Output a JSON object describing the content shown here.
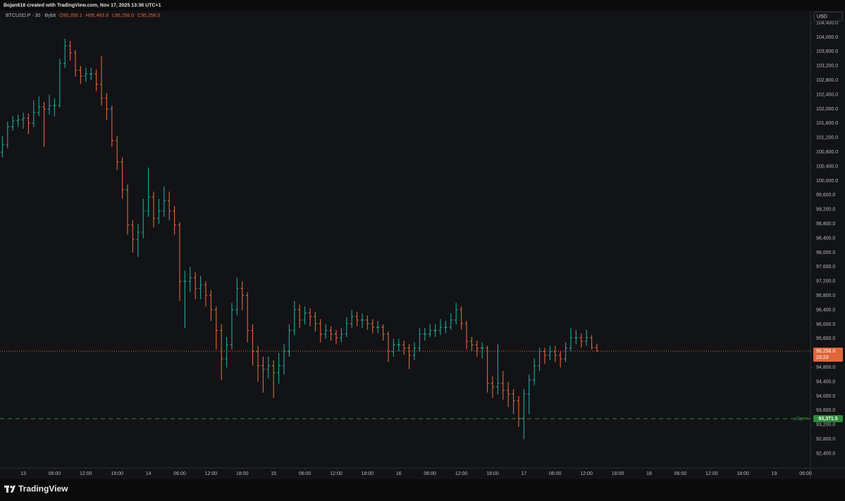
{
  "header": "Bojan618 created with TradingView.com, Nov 17, 2025 13:36 UTC+1",
  "footer": "TradingView",
  "chart_data": {
    "type": "ohlc",
    "symbol": "BTCUSD.P · 30 · Bybit",
    "currency": "USD",
    "legend": [
      {
        "prefix": "O",
        "label": "95,356.1"
      },
      {
        "prefix": "H",
        "label": "95,463.8"
      },
      {
        "prefix": "L",
        "label": "95,256.0"
      },
      {
        "prefix": "C",
        "label": "95,256.0"
      }
    ],
    "up_color": "#26a69a",
    "down_color": "#e0663c",
    "x": [
      -4,
      -3,
      -2,
      -1,
      0,
      1,
      2,
      3,
      4,
      5,
      6,
      7,
      8,
      9,
      10,
      11,
      12,
      13,
      14,
      15,
      16,
      17,
      18,
      19,
      20,
      21,
      22,
      23,
      24,
      25,
      26,
      27,
      28,
      29,
      30,
      31,
      32,
      33,
      34,
      35,
      36,
      37,
      38,
      39,
      40,
      41,
      42,
      43,
      44,
      45,
      46,
      47,
      48,
      49,
      50,
      51,
      52,
      53,
      54,
      55,
      56,
      57,
      58,
      59,
      60,
      61,
      62,
      63,
      64,
      65,
      66,
      67,
      68,
      69,
      70,
      71,
      72,
      73,
      74,
      75,
      76,
      77,
      78,
      79,
      80,
      81,
      82,
      83,
      84,
      85,
      86,
      87,
      88,
      89,
      90,
      91,
      92,
      93,
      94,
      95,
      96,
      97,
      98,
      99,
      100,
      101,
      102,
      103,
      104,
      105,
      106,
      107,
      108,
      109,
      110
    ],
    "open": [
      100800,
      101000,
      101510,
      101670,
      101700,
      101750,
      101610,
      101900,
      102060,
      102000,
      102100,
      102100,
      103270,
      103760,
      103570,
      103080,
      102920,
      102980,
      102980,
      102690,
      102300,
      102000,
      101120,
      100530,
      99750,
      98770,
      98370,
      98570,
      99160,
      99550,
      98960,
      99160,
      99450,
      99160,
      98770,
      97200,
      97200,
      97300,
      97000,
      97100,
      96810,
      96410,
      95830,
      95040,
      95430,
      96410,
      97000,
      96810,
      95830,
      95240,
      94850,
      94750,
      94850,
      94650,
      94850,
      95240,
      95830,
      96410,
      96120,
      96320,
      96220,
      96020,
      95730,
      95830,
      95730,
      95630,
      95730,
      96020,
      96220,
      96120,
      96120,
      96020,
      95920,
      95920,
      95730,
      95240,
      95430,
      95430,
      95340,
      95140,
      95340,
      95730,
      95730,
      95830,
      95830,
      95920,
      95920,
      96120,
      96410,
      96020,
      95530,
      95430,
      95340,
      95340,
      94360,
      94260,
      94360,
      94160,
      94060,
      93870,
      93380,
      94060,
      94450,
      94850,
      95240,
      95140,
      95240,
      95140,
      95040,
      95340,
      95630,
      95630,
      95530,
      95630,
      95356.1
    ],
    "high": [
      101250,
      101650,
      101800,
      101850,
      101900,
      101880,
      102250,
      102350,
      102200,
      102400,
      102300,
      103400,
      103960,
      103900,
      103650,
      103200,
      103150,
      103150,
      103100,
      103470,
      102450,
      102100,
      101250,
      100650,
      99900,
      98900,
      98800,
      99500,
      100370,
      99700,
      99500,
      99850,
      99700,
      99300,
      98850,
      97500,
      97600,
      97450,
      97350,
      97200,
      96950,
      96500,
      96000,
      95650,
      96600,
      97300,
      97200,
      96900,
      96000,
      95400,
      95100,
      95100,
      95000,
      95200,
      95450,
      96000,
      96650,
      96550,
      96500,
      96450,
      96350,
      96150,
      96000,
      95950,
      95850,
      95900,
      96200,
      96400,
      96350,
      96300,
      96250,
      96150,
      96100,
      96000,
      95800,
      95600,
      95600,
      95550,
      95450,
      95500,
      95900,
      95900,
      96000,
      96000,
      96150,
      96100,
      96300,
      96600,
      96500,
      96100,
      95650,
      95550,
      95500,
      95400,
      94550,
      95450,
      94700,
      94400,
      94200,
      94000,
      94200,
      94600,
      95050,
      95350,
      95350,
      95400,
      95400,
      95250,
      95500,
      95900,
      95850,
      95750,
      95850,
      95700,
      95463.8
    ],
    "low": [
      100650,
      100900,
      101400,
      101500,
      101450,
      101300,
      101500,
      101800,
      100950,
      101850,
      101800,
      102050,
      103150,
      103350,
      102900,
      102700,
      102750,
      102800,
      102500,
      102100,
      101700,
      100950,
      100300,
      99500,
      98500,
      98000,
      97880,
      98400,
      99000,
      98700,
      98800,
      99000,
      98900,
      98500,
      96650,
      95900,
      96900,
      96700,
      96700,
      96500,
      96100,
      95300,
      94450,
      94800,
      95300,
      96250,
      96400,
      95500,
      94850,
      94400,
      94100,
      94500,
      93950,
      94350,
      94600,
      95100,
      95700,
      95900,
      96000,
      95950,
      95800,
      95500,
      95600,
      95550,
      95450,
      95500,
      95650,
      95900,
      95950,
      95900,
      95850,
      95750,
      95750,
      95550,
      94950,
      95100,
      95250,
      95150,
      94750,
      95000,
      95250,
      95550,
      95650,
      95650,
      95700,
      95750,
      95850,
      96000,
      95850,
      95300,
      95250,
      95100,
      95050,
      94100,
      93950,
      94050,
      93900,
      93700,
      93500,
      93150,
      92800,
      93500,
      94300,
      94700,
      94900,
      95000,
      94950,
      94800,
      94950,
      95250,
      95450,
      95350,
      95400,
      95300,
      95256
    ],
    "close": [
      101000,
      101510,
      101670,
      101700,
      101750,
      101610,
      101900,
      102060,
      102000,
      102100,
      102100,
      103270,
      103760,
      103570,
      103080,
      102920,
      102980,
      102980,
      102690,
      102300,
      102000,
      101120,
      100530,
      99750,
      98770,
      98370,
      98570,
      99160,
      99550,
      98960,
      99160,
      99450,
      99160,
      98770,
      97200,
      97200,
      97300,
      97000,
      97100,
      96810,
      96410,
      95830,
      95040,
      95430,
      96410,
      97000,
      96810,
      95830,
      95240,
      94850,
      94750,
      94850,
      94650,
      94850,
      95240,
      95830,
      96410,
      96120,
      96320,
      96220,
      96020,
      95730,
      95830,
      95730,
      95630,
      95730,
      96020,
      96220,
      96120,
      96120,
      96020,
      95920,
      95920,
      95730,
      95240,
      95430,
      95430,
      95340,
      95140,
      95340,
      95730,
      95730,
      95830,
      95830,
      95920,
      95920,
      96120,
      96410,
      96020,
      95530,
      95430,
      95340,
      95340,
      94360,
      94260,
      94360,
      94160,
      94060,
      93870,
      93380,
      94060,
      94450,
      94850,
      95240,
      95140,
      95240,
      95140,
      95040,
      95340,
      95630,
      95630,
      95530,
      95630,
      95356.1,
      95256
    ],
    "xlim": [
      -4.46,
      150.95
    ],
    "xticks": [
      {
        "value": 0,
        "label": "13"
      },
      {
        "value": 6,
        "label": "06:00"
      },
      {
        "value": 12,
        "label": "12:00"
      },
      {
        "value": 18,
        "label": "18:00"
      },
      {
        "value": 24,
        "label": "14"
      },
      {
        "value": 30,
        "label": "06:00"
      },
      {
        "value": 36,
        "label": "12:00"
      },
      {
        "value": 42,
        "label": "18:00"
      },
      {
        "value": 48,
        "label": "15"
      },
      {
        "value": 54,
        "label": "06:00"
      },
      {
        "value": 60,
        "label": "12:00"
      },
      {
        "value": 66,
        "label": "18:00"
      },
      {
        "value": 72,
        "label": "16"
      },
      {
        "value": 78,
        "label": "06:00"
      },
      {
        "value": 84,
        "label": "12:00"
      },
      {
        "value": 90,
        "label": "18:00"
      },
      {
        "value": 96,
        "label": "17"
      },
      {
        "value": 102,
        "label": "06:00"
      },
      {
        "value": 108,
        "label": "12:00"
      },
      {
        "value": 114,
        "label": "18:00"
      },
      {
        "value": 120,
        "label": "18"
      },
      {
        "value": 126,
        "label": "06:00"
      },
      {
        "value": 132,
        "label": "12:00"
      },
      {
        "value": 138,
        "label": "18:00"
      },
      {
        "value": 144,
        "label": "19"
      },
      {
        "value": 150,
        "label": "06:00"
      }
    ],
    "ylim": [
      92000,
      104745
    ],
    "yticks": [
      {
        "value": 92400,
        "label": "92,400.0"
      },
      {
        "value": 92800,
        "label": "92,800.0"
      },
      {
        "value": 93200,
        "label": "93,200.0"
      },
      {
        "value": 93600,
        "label": "93,600.0"
      },
      {
        "value": 94000,
        "label": "94,000.0"
      },
      {
        "value": 94400,
        "label": "94,400.0"
      },
      {
        "value": 94800,
        "label": "94,800.0"
      },
      {
        "value": 95200,
        "label": "95,200.0"
      },
      {
        "value": 95600,
        "label": "95,600.0"
      },
      {
        "value": 96000,
        "label": "96,000.0"
      },
      {
        "value": 96400,
        "label": "96,400.0"
      },
      {
        "value": 96800,
        "label": "96,800.0"
      },
      {
        "value": 97200,
        "label": "97,200.0"
      },
      {
        "value": 97600,
        "label": "97,600.0"
      },
      {
        "value": 98000,
        "label": "98,000.0"
      },
      {
        "value": 98400,
        "label": "98,400.0"
      },
      {
        "value": 98800,
        "label": "98,800.0"
      },
      {
        "value": 99200,
        "label": "99,200.0"
      },
      {
        "value": 99600,
        "label": "99,600.0"
      },
      {
        "value": 100000,
        "label": "100,000.0"
      },
      {
        "value": 100400,
        "label": "100,400.0"
      },
      {
        "value": 100800,
        "label": "100,800.0"
      },
      {
        "value": 101200,
        "label": "101,200.0"
      },
      {
        "value": 101600,
        "label": "101,600.0"
      },
      {
        "value": 102000,
        "label": "102,000.0"
      },
      {
        "value": 102400,
        "label": "102,400.0"
      },
      {
        "value": 102800,
        "label": "102,800.0"
      },
      {
        "value": 103200,
        "label": "103,200.0"
      },
      {
        "value": 103600,
        "label": "103,600.0"
      },
      {
        "value": 104000,
        "label": "104,000.0"
      },
      {
        "value": 104400,
        "label": "104,400.0"
      }
    ],
    "grid": false,
    "last_price": {
      "value": 95256,
      "label": "95,256.0",
      "countdown": "23:23",
      "color": "#e0663c"
    },
    "level": {
      "name": "yOpen",
      "value": 93371.5,
      "label": "93,371.5",
      "color": "#2e8b3a"
    }
  }
}
